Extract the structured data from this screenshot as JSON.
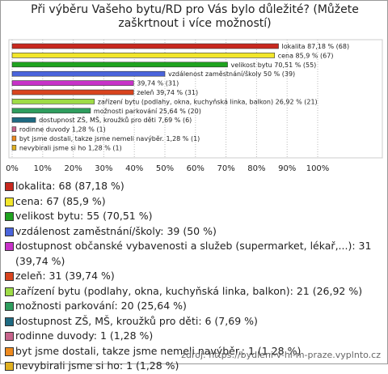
{
  "chart_data": {
    "type": "bar",
    "orientation": "horizontal",
    "title": "Při výběru Vašeho bytu/RD pro Vás bylo důležité? (Můžete zaškrtnout i více možností)",
    "categories": [
      "lokalita",
      "cena",
      "velikost bytu",
      "vzdálenost zaměstnání/školy",
      "dostupnost občanské vybavenosti a služeb (supermarket, lékař,...)",
      "zeleň",
      "zařízení bytu (podlahy, okna, kuchyňská linka, balkon)",
      "možnosti parkování",
      "dostupnost ZŠ, MŠ, kroužků pro děti",
      "rodinne duvody",
      "byt jsme dostali, takze jsme nemeli navýběr.",
      "nevybirali jsme si ho"
    ],
    "values": [
      87.18,
      85.9,
      70.51,
      50,
      39.74,
      39.74,
      26.92,
      25.64,
      7.69,
      1.28,
      1.28,
      1.28
    ],
    "value_labels": [
      "lokalita 87,18 % (68)",
      "cena 85,9 % (67)",
      "velikost bytu 70,51 % (55)",
      "vzdálenost zaměstnání/školy 50 % (39)",
      "39,74 % (31)",
      "zeleň 39,74 % (31)",
      "zařízení bytu (podlahy, okna, kuchyňská linka, balkon) 26,92 % (21)",
      "možnosti parkování 25,64 % (20)",
      "dostupnost ZŠ, MŠ, kroužků pro děti 7,69 % (6)",
      "rodinne duvody 1,28 % (1)",
      "byt jsme dostali, takze jsme nemeli navýběr. 1,28 % (1)",
      "nevybirali jsme si ho 1,28 % (1)"
    ],
    "legend_labels": [
      "lokalita: 68 (87,18 %)",
      "cena: 67 (85,9 %)",
      "velikost bytu: 55 (70,51 %)",
      "vzdálenost zaměstnání/školy: 39 (50 %)",
      "dostupnost občanské vybavenosti a služeb (supermarket, lékař,...): 31 (39,74 %)",
      "zeleň: 31 (39,74 %)",
      "zařízení bytu (podlahy, okna, kuchyňská linka, balkon): 21 (26,92 %)",
      "možnosti parkování: 20 (25,64 %)",
      "dostupnost ZŠ, MŠ, kroužků pro děti: 6 (7,69 %)",
      "rodinne duvody: 1 (1,28 %)",
      "byt jsme dostali, takze jsme nemeli navýběr.: 1 (1,28 %)",
      "nevybirali jsme si ho: 1 (1,28 %)"
    ],
    "colors": [
      "#c8281e",
      "#f2e62a",
      "#1fa31f",
      "#4a64dc",
      "#c832c8",
      "#d9441e",
      "#9edc46",
      "#2e9e5e",
      "#1e6a82",
      "#c8648c",
      "#ee8a1e",
      "#e0b020"
    ],
    "xlim": [
      0,
      100
    ],
    "xticks": [
      {
        "value": 0,
        "label": "0%"
      },
      {
        "value": 10,
        "label": "10%"
      },
      {
        "value": 20,
        "label": "20%"
      },
      {
        "value": 30,
        "label": "30%"
      },
      {
        "value": 40,
        "label": "40%"
      },
      {
        "value": 50,
        "label": "50%"
      },
      {
        "value": 60,
        "label": "60%"
      },
      {
        "value": 70,
        "label": "70%"
      },
      {
        "value": 80,
        "label": "80%"
      },
      {
        "value": 90,
        "label": "90%"
      },
      {
        "value": 100,
        "label": "100%"
      }
    ],
    "grid": true,
    "source": "zdroj: https://bydleni-v-hl-m-praze.vyplnto.cz"
  }
}
